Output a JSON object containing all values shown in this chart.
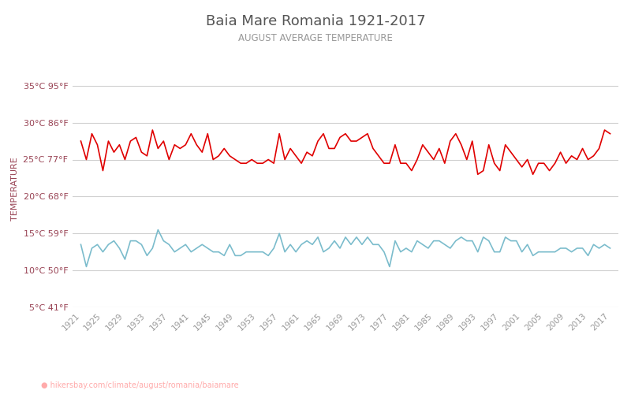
{
  "title": "Baia Mare Romania 1921-2017",
  "subtitle": "AUGUST AVERAGE TEMPERATURE",
  "ylabel": "TEMPERATURE",
  "xlabel_url": "hikersbay.com/climate/august/romania/baiamare",
  "ylim": [
    5,
    37
  ],
  "yticks_c": [
    5,
    10,
    15,
    20,
    25,
    30,
    35
  ],
  "yticks_f": [
    41,
    50,
    59,
    68,
    77,
    86,
    95
  ],
  "years": [
    1921,
    1922,
    1923,
    1924,
    1925,
    1926,
    1927,
    1928,
    1929,
    1930,
    1931,
    1932,
    1933,
    1934,
    1935,
    1936,
    1937,
    1938,
    1939,
    1940,
    1941,
    1942,
    1943,
    1944,
    1945,
    1946,
    1947,
    1948,
    1949,
    1950,
    1951,
    1952,
    1953,
    1954,
    1955,
    1956,
    1957,
    1958,
    1959,
    1960,
    1961,
    1962,
    1963,
    1964,
    1965,
    1966,
    1967,
    1968,
    1969,
    1970,
    1971,
    1972,
    1973,
    1974,
    1975,
    1976,
    1977,
    1978,
    1979,
    1980,
    1981,
    1982,
    1983,
    1984,
    1985,
    1986,
    1987,
    1988,
    1989,
    1990,
    1991,
    1992,
    1993,
    1994,
    1995,
    1996,
    1997,
    1998,
    1999,
    2000,
    2001,
    2002,
    2003,
    2004,
    2005,
    2006,
    2007,
    2008,
    2009,
    2010,
    2011,
    2012,
    2013,
    2014,
    2015,
    2016,
    2017
  ],
  "day_temps": [
    27.5,
    25.0,
    28.5,
    27.0,
    23.5,
    27.5,
    26.0,
    27.0,
    25.0,
    27.5,
    28.0,
    26.0,
    25.5,
    29.0,
    26.5,
    27.5,
    25.0,
    27.0,
    26.5,
    27.0,
    28.5,
    27.0,
    26.0,
    28.5,
    25.0,
    25.5,
    26.5,
    25.5,
    25.0,
    24.5,
    24.5,
    25.0,
    24.5,
    24.5,
    25.0,
    24.5,
    28.5,
    25.0,
    26.5,
    25.5,
    24.5,
    26.0,
    25.5,
    27.5,
    28.5,
    26.5,
    26.5,
    28.0,
    28.5,
    27.5,
    27.5,
    28.0,
    28.5,
    26.5,
    25.5,
    24.5,
    24.5,
    27.0,
    24.5,
    24.5,
    23.5,
    25.0,
    27.0,
    26.0,
    25.0,
    26.5,
    24.5,
    27.5,
    28.5,
    27.0,
    25.0,
    27.5,
    23.0,
    23.5,
    27.0,
    24.5,
    23.5,
    27.0,
    26.0,
    25.0,
    24.0,
    25.0,
    23.0,
    24.5,
    24.5,
    23.5,
    24.5,
    26.0,
    24.5,
    25.5,
    25.0,
    26.5,
    25.0,
    25.5,
    26.5,
    29.0,
    28.5
  ],
  "night_temps": [
    13.5,
    10.5,
    13.0,
    13.5,
    12.5,
    13.5,
    14.0,
    13.0,
    11.5,
    14.0,
    14.0,
    13.5,
    12.0,
    13.0,
    15.5,
    14.0,
    13.5,
    12.5,
    13.0,
    13.5,
    12.5,
    13.0,
    13.5,
    13.0,
    12.5,
    12.5,
    12.0,
    13.5,
    12.0,
    12.0,
    12.5,
    12.5,
    12.5,
    12.5,
    12.0,
    13.0,
    15.0,
    12.5,
    13.5,
    12.5,
    13.5,
    14.0,
    13.5,
    14.5,
    12.5,
    13.0,
    14.0,
    13.0,
    14.5,
    13.5,
    14.5,
    13.5,
    14.5,
    13.5,
    13.5,
    12.5,
    10.5,
    14.0,
    12.5,
    13.0,
    12.5,
    14.0,
    13.5,
    13.0,
    14.0,
    14.0,
    13.5,
    13.0,
    14.0,
    14.5,
    14.0,
    14.0,
    12.5,
    14.5,
    14.0,
    12.5,
    12.5,
    14.5,
    14.0,
    14.0,
    12.5,
    13.5,
    12.0,
    12.5,
    12.5,
    12.5,
    12.5,
    13.0,
    13.0,
    12.5,
    13.0,
    13.0,
    12.0,
    13.5,
    13.0,
    13.5,
    13.0
  ],
  "day_color": "#e00000",
  "night_color": "#7bbccc",
  "grid_color": "#d0d0d0",
  "bg_color": "#ffffff",
  "title_color": "#555555",
  "subtitle_color": "#999999",
  "ylabel_color": "#994455",
  "tick_label_color": "#994455",
  "xtick_color": "#999999",
  "url_color": "#ffaaaa",
  "url_icon_color": "#ff6666",
  "legend_day_color": "#e00000",
  "legend_night_color": "#7bbccc",
  "line_width": 1.2,
  "xtick_years": [
    1921,
    1925,
    1929,
    1933,
    1937,
    1941,
    1945,
    1949,
    1953,
    1957,
    1961,
    1965,
    1969,
    1973,
    1977,
    1981,
    1985,
    1989,
    1993,
    1997,
    2001,
    2005,
    2009,
    2013,
    2017
  ]
}
